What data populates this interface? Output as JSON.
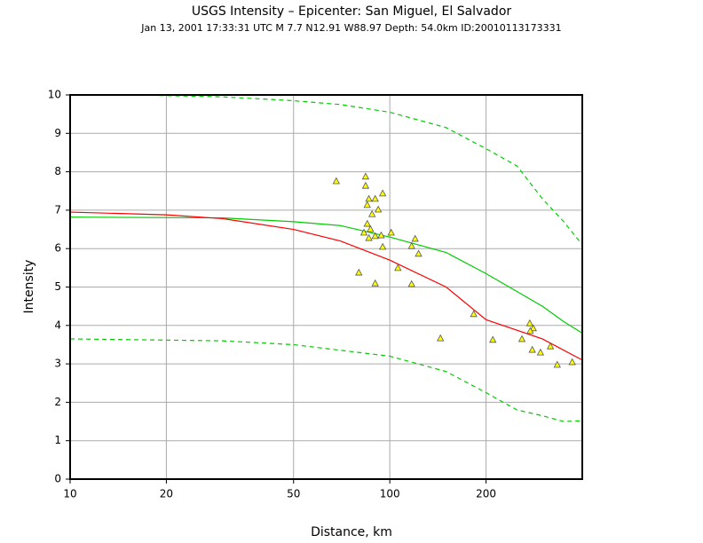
{
  "chart_data": {
    "type": "line",
    "title": "USGS Intensity –  Epicenter: San Miguel, El Salvador",
    "subtitle": "Jan 13, 2001 17:33:31 UTC   M 7.7   N12.91 W88.97   Depth: 54.0km   ID:20010113173331",
    "x_label": "Distance, km",
    "y_label": "Intensity",
    "x_scale": "log",
    "xlim": [
      10,
      400
    ],
    "ylim": [
      0,
      10
    ],
    "xticks": [
      10,
      20,
      50,
      100,
      200
    ],
    "yticks": [
      0,
      1,
      2,
      3,
      4,
      5,
      6,
      7,
      8,
      9,
      10
    ],
    "grid": true,
    "series": [
      {
        "type": "line",
        "color": "#00cc00",
        "style": "dashed",
        "x": [
          16,
          30,
          50,
          70,
          100,
          150,
          200,
          250,
          300,
          350,
          400
        ],
        "values": [
          10.0,
          9.95,
          9.85,
          9.75,
          9.55,
          9.15,
          8.6,
          8.15,
          7.3,
          6.7,
          6.1
        ]
      },
      {
        "type": "line",
        "color": "#00cc00",
        "style": "dashed",
        "x": [
          10,
          30,
          50,
          100,
          150,
          200,
          250,
          300,
          350,
          400
        ],
        "values": [
          3.65,
          3.6,
          3.5,
          3.2,
          2.8,
          2.25,
          1.8,
          1.65,
          1.5,
          1.52
        ]
      },
      {
        "type": "line",
        "color": "#00cc00",
        "style": "solid",
        "x": [
          10,
          30,
          50,
          70,
          100,
          150,
          200,
          300,
          350,
          400
        ],
        "values": [
          6.82,
          6.8,
          6.7,
          6.6,
          6.3,
          5.9,
          5.35,
          4.5,
          4.1,
          3.8
        ]
      },
      {
        "type": "line",
        "color": "#ff0000",
        "style": "solid",
        "x": [
          10,
          20,
          30,
          50,
          70,
          100,
          150,
          200,
          300,
          400
        ],
        "values": [
          6.95,
          6.88,
          6.78,
          6.5,
          6.2,
          5.7,
          5.0,
          4.15,
          3.65,
          3.1
        ]
      },
      {
        "type": "scatter",
        "color": "#ffff00",
        "x": [
          68,
          84,
          84,
          86,
          90,
          95,
          85,
          92,
          88,
          85,
          83,
          87,
          86,
          90,
          94,
          101,
          120,
          117,
          95,
          123,
          106,
          80,
          90,
          117,
          183,
          144,
          210,
          274,
          281,
          275,
          259,
          318,
          279,
          296,
          334,
          372
        ],
        "values": [
          7.76,
          7.88,
          7.64,
          7.3,
          7.3,
          7.44,
          7.14,
          7.02,
          6.9,
          6.65,
          6.42,
          6.51,
          6.28,
          6.33,
          6.35,
          6.42,
          6.26,
          6.07,
          6.05,
          5.87,
          5.5,
          5.38,
          5.1,
          5.08,
          4.3,
          3.67,
          3.63,
          4.06,
          3.93,
          3.86,
          3.65,
          3.46,
          3.37,
          3.3,
          2.98,
          3.05
        ]
      }
    ]
  }
}
